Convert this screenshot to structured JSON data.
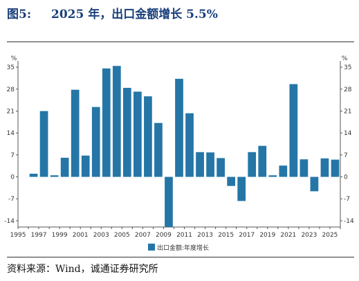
{
  "header": {
    "figure_label": "图5:",
    "title": "2025 年，出口金额增长 5.5%"
  },
  "source": "资料来源：Wind，诚通证券研究所",
  "colors": {
    "bar": "#2576a6",
    "axis": "#555555",
    "text": "#333333"
  },
  "chart_data": {
    "type": "bar",
    "unit_left": "%",
    "unit_right": "%",
    "categories": [
      1996,
      1997,
      1998,
      1999,
      2000,
      2001,
      2002,
      2003,
      2004,
      2005,
      2006,
      2007,
      2008,
      2009,
      2010,
      2011,
      2012,
      2013,
      2014,
      2015,
      2016,
      2017,
      2018,
      2019,
      2020,
      2021,
      2022,
      2023,
      2024,
      2025
    ],
    "series": [
      {
        "name": "出口金额:年度增长",
        "values": [
          1.0,
          21.0,
          0.5,
          6.1,
          27.8,
          6.8,
          22.3,
          34.6,
          35.4,
          28.4,
          27.2,
          25.7,
          17.2,
          -16.0,
          31.3,
          20.3,
          7.9,
          7.8,
          6.0,
          -2.9,
          -7.7,
          7.9,
          9.9,
          0.5,
          3.6,
          29.6,
          5.6,
          -4.6,
          5.9,
          5.5
        ]
      }
    ],
    "x_tick_labels": [
      "1995",
      "1997",
      "1999",
      "2001",
      "2003",
      "2005",
      "2007",
      "2009",
      "2011",
      "2013",
      "2015",
      "2017",
      "2019",
      "2021",
      "2023",
      "2025"
    ],
    "y_ticks": [
      35,
      28,
      21,
      14,
      7,
      0,
      -7,
      -14
    ],
    "ylim": [
      -16,
      37
    ],
    "xlim": [
      1995,
      2026
    ],
    "legend_position": "bottom-center"
  }
}
